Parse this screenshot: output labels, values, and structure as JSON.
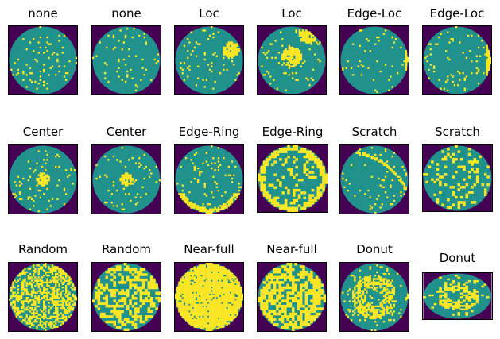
{
  "grid": {
    "rows": [
      [
        "none",
        "none",
        "Loc",
        "Loc",
        "Edge-Loc",
        "Edge-Loc"
      ],
      [
        "Center",
        "Center",
        "Edge-Ring",
        "Edge-Ring",
        "Scratch",
        "Scratch"
      ],
      [
        "Random",
        "Random",
        "Near-full",
        "Near-full",
        "Donut",
        "Donut"
      ]
    ]
  },
  "colors": {
    "background": "#440154",
    "wafer": "#21918c",
    "defect": "#fde725"
  }
}
